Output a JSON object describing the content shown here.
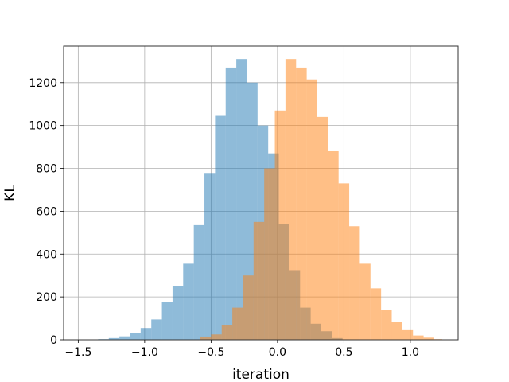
{
  "chart_data": {
    "type": "bar",
    "title": "",
    "xlabel": "iteration",
    "ylabel": "KL",
    "xlim": [
      -1.61,
      1.36
    ],
    "ylim": [
      0,
      1370
    ],
    "grid": true,
    "xticks": [
      -1.5,
      -1.0,
      -0.5,
      0.0,
      0.5,
      1.0
    ],
    "xtick_labels": [
      "−1.5",
      "−1.0",
      "−0.5",
      "0.0",
      "0.5",
      "1.0"
    ],
    "yticks": [
      0,
      200,
      400,
      600,
      800,
      1000,
      1200
    ],
    "ytick_labels": [
      "0",
      "200",
      "400",
      "600",
      "800",
      "1000",
      "1200"
    ],
    "colors": [
      "#1f77b4",
      "#ff7f0e"
    ],
    "alpha": 0.5,
    "series": [
      {
        "bin_edges": [
          -1.35,
          -1.27,
          -1.19,
          -1.11,
          -1.03,
          -0.95,
          -0.87,
          -0.79,
          -0.71,
          -0.63,
          -0.55,
          -0.47,
          -0.39,
          -0.31,
          -0.23,
          -0.15,
          -0.07,
          0.01,
          0.09,
          0.17,
          0.25,
          0.33,
          0.41,
          0.49
        ],
        "counts": [
          3,
          8,
          16,
          30,
          55,
          95,
          175,
          250,
          355,
          535,
          775,
          1045,
          1270,
          1310,
          1200,
          1000,
          870,
          540,
          325,
          150,
          75,
          40,
          8
        ]
      },
      {
        "bin_edges": [
          -0.58,
          -0.5,
          -0.42,
          -0.34,
          -0.26,
          -0.18,
          -0.1,
          -0.02,
          0.06,
          0.14,
          0.22,
          0.3,
          0.38,
          0.46,
          0.54,
          0.62,
          0.7,
          0.78,
          0.86,
          0.94,
          1.02,
          1.1,
          1.18,
          1.24
        ],
        "counts": [
          15,
          25,
          70,
          150,
          300,
          550,
          800,
          1070,
          1310,
          1270,
          1215,
          1040,
          880,
          730,
          530,
          355,
          240,
          140,
          85,
          45,
          20,
          10,
          3
        ]
      }
    ]
  }
}
